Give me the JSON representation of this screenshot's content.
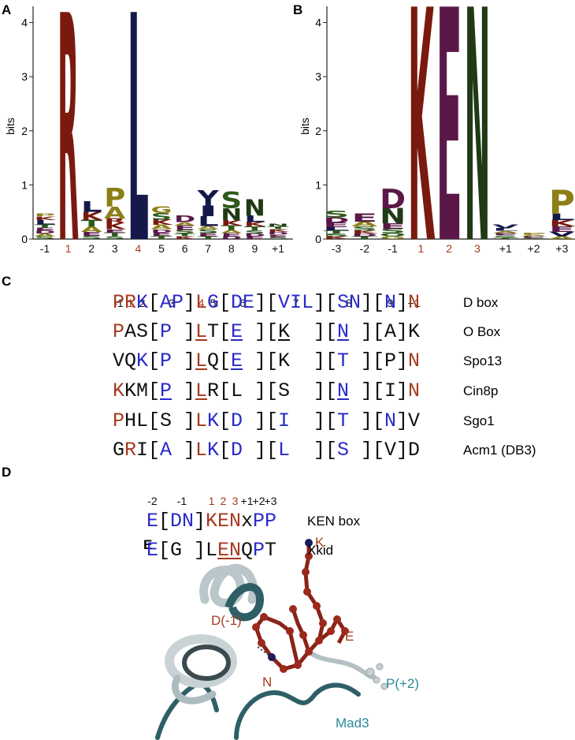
{
  "chart_data": [
    {
      "type": "logo",
      "panel": "A",
      "ylabel": "bits",
      "ylim": [
        0,
        4.3
      ],
      "yticks": [
        0,
        1,
        2,
        3,
        4
      ],
      "categories": [
        "-1",
        "1",
        "2",
        "3",
        "4",
        "5",
        "6",
        "7",
        "8",
        "9",
        "+1"
      ],
      "category_colors": [
        "#111111",
        "#a63a1f",
        "#111111",
        "#111111",
        "#a63a1f",
        "#111111",
        "#111111",
        "#111111",
        "#111111",
        "#111111",
        "#111111"
      ],
      "stacks": [
        [
          {
            "letter": "S",
            "bits": 0.05
          },
          {
            "letter": "A",
            "bits": 0.05
          },
          {
            "letter": "D",
            "bits": 0.06
          },
          {
            "letter": "E",
            "bits": 0.05
          },
          {
            "letter": "T",
            "bits": 0.06
          },
          {
            "letter": "L",
            "bits": 0.08
          },
          {
            "letter": "K",
            "bits": 0.07
          },
          {
            "letter": "P",
            "bits": 0.05
          }
        ],
        [
          {
            "letter": "R",
            "bits": 4.2
          }
        ],
        [
          {
            "letter": "S",
            "bits": 0.06
          },
          {
            "letter": "E",
            "bits": 0.07
          },
          {
            "letter": "A",
            "bits": 0.1
          },
          {
            "letter": "T",
            "bits": 0.12
          },
          {
            "letter": "K",
            "bits": 0.15
          },
          {
            "letter": "L",
            "bits": 0.2
          }
        ],
        [
          {
            "letter": "S",
            "bits": 0.05
          },
          {
            "letter": "T",
            "bits": 0.07
          },
          {
            "letter": "E",
            "bits": 0.06
          },
          {
            "letter": "K",
            "bits": 0.12
          },
          {
            "letter": "R",
            "bits": 0.08
          },
          {
            "letter": "A",
            "bits": 0.22
          },
          {
            "letter": "P",
            "bits": 0.35
          }
        ],
        [
          {
            "letter": "L",
            "bits": 4.2
          }
        ],
        [
          {
            "letter": "T",
            "bits": 0.06
          },
          {
            "letter": "E",
            "bits": 0.06
          },
          {
            "letter": "D",
            "bits": 0.06
          },
          {
            "letter": "A",
            "bits": 0.08
          },
          {
            "letter": "K",
            "bits": 0.1
          },
          {
            "letter": "S",
            "bits": 0.12
          },
          {
            "letter": "G",
            "bits": 0.12
          }
        ],
        [
          {
            "letter": "K",
            "bits": 0.05
          },
          {
            "letter": "T",
            "bits": 0.05
          },
          {
            "letter": "S",
            "bits": 0.07
          },
          {
            "letter": "E",
            "bits": 0.08
          },
          {
            "letter": "A",
            "bits": 0.06
          },
          {
            "letter": "D",
            "bits": 0.12
          }
        ],
        [
          {
            "letter": "T",
            "bits": 0.05
          },
          {
            "letter": "E",
            "bits": 0.06
          },
          {
            "letter": "S",
            "bits": 0.07
          },
          {
            "letter": "A",
            "bits": 0.06
          },
          {
            "letter": "L",
            "bits": 0.18
          },
          {
            "letter": "I",
            "bits": 0.2
          },
          {
            "letter": "Y",
            "bits": 0.28
          }
        ],
        [
          {
            "letter": "D",
            "bits": 0.05
          },
          {
            "letter": "E",
            "bits": 0.06
          },
          {
            "letter": "A",
            "bits": 0.06
          },
          {
            "letter": "T",
            "bits": 0.08
          },
          {
            "letter": "K",
            "bits": 0.1
          },
          {
            "letter": "N",
            "bits": 0.22
          },
          {
            "letter": "S",
            "bits": 0.3
          }
        ],
        [
          {
            "letter": "E",
            "bits": 0.05
          },
          {
            "letter": "D",
            "bits": 0.05
          },
          {
            "letter": "S",
            "bits": 0.06
          },
          {
            "letter": "T",
            "bits": 0.07
          },
          {
            "letter": "K",
            "bits": 0.08
          },
          {
            "letter": "L",
            "bits": 0.12
          },
          {
            "letter": "N",
            "bits": 0.3
          }
        ],
        [
          {
            "letter": "S",
            "bits": 0.04
          },
          {
            "letter": "E",
            "bits": 0.04
          },
          {
            "letter": "D",
            "bits": 0.05
          },
          {
            "letter": "K",
            "bits": 0.05
          },
          {
            "letter": "T",
            "bits": 0.05
          },
          {
            "letter": "N",
            "bits": 0.05
          }
        ]
      ]
    },
    {
      "type": "logo",
      "panel": "B",
      "ylabel": "bits",
      "ylim": [
        0,
        4.3
      ],
      "yticks": [
        0,
        1,
        2,
        3,
        4
      ],
      "categories": [
        "-3",
        "-2",
        "-1",
        "1",
        "2",
        "3",
        "+1",
        "+2",
        "+3"
      ],
      "category_colors": [
        "#111111",
        "#111111",
        "#111111",
        "#a63a1f",
        "#a63a1f",
        "#a63a1f",
        "#111111",
        "#111111",
        "#111111"
      ],
      "stacks": [
        [
          {
            "letter": "K",
            "bits": 0.05
          },
          {
            "letter": "S",
            "bits": 0.05
          },
          {
            "letter": "T",
            "bits": 0.06
          },
          {
            "letter": "L",
            "bits": 0.06
          },
          {
            "letter": "E",
            "bits": 0.08
          },
          {
            "letter": "D",
            "bits": 0.1
          },
          {
            "letter": "S",
            "bits": 0.12
          }
        ],
        [
          {
            "letter": "T",
            "bits": 0.05
          },
          {
            "letter": "D",
            "bits": 0.05
          },
          {
            "letter": "K",
            "bits": 0.06
          },
          {
            "letter": "S",
            "bits": 0.07
          },
          {
            "letter": "A",
            "bits": 0.09
          },
          {
            "letter": "E",
            "bits": 0.15
          }
        ],
        [
          {
            "letter": "G",
            "bits": 0.05
          },
          {
            "letter": "Q",
            "bits": 0.06
          },
          {
            "letter": "S",
            "bits": 0.08
          },
          {
            "letter": "E",
            "bits": 0.1
          },
          {
            "letter": "N",
            "bits": 0.28
          },
          {
            "letter": "D",
            "bits": 0.36
          }
        ],
        [
          {
            "letter": "K",
            "bits": 4.3
          }
        ],
        [
          {
            "letter": "E",
            "bits": 4.3
          }
        ],
        [
          {
            "letter": "N",
            "bits": 4.3
          }
        ],
        [
          {
            "letter": "T",
            "bits": 0.03
          },
          {
            "letter": "S",
            "bits": 0.04
          },
          {
            "letter": "E",
            "bits": 0.04
          },
          {
            "letter": "A",
            "bits": 0.04
          },
          {
            "letter": "L",
            "bits": 0.05
          },
          {
            "letter": "V",
            "bits": 0.07
          }
        ],
        [
          {
            "letter": "S",
            "bits": 0.02
          },
          {
            "letter": "E",
            "bits": 0.03
          },
          {
            "letter": "A",
            "bits": 0.03
          },
          {
            "letter": "P",
            "bits": 0.04
          }
        ],
        [
          {
            "letter": "A",
            "bits": 0.05
          },
          {
            "letter": "V",
            "bits": 0.08
          },
          {
            "letter": "E",
            "bits": 0.1
          },
          {
            "letter": "K",
            "bits": 0.12
          },
          {
            "letter": "L",
            "bits": 0.12
          },
          {
            "letter": "P",
            "bits": 0.45
          }
        ]
      ]
    }
  ],
  "letter_colors": {
    "R": "#7a1a0f",
    "K": "#7a1a0f",
    "L": "#14194a",
    "I": "#14194a",
    "V": "#14194a",
    "Y": "#14194a",
    "P": "#8c7f16",
    "A": "#8c7f16",
    "G": "#8c7f16",
    "N": "#1f3a14",
    "S": "#2e5a1e",
    "T": "#2e5a1e",
    "Q": "#2e5a1e",
    "D": "#5a1848",
    "E": "#5a1848"
  },
  "alignment_c": {
    "panel": "C",
    "header": [
      "-1",
      "1",
      "2",
      "3",
      "4",
      "5",
      "6",
      "7",
      "8",
      "9",
      "+1"
    ],
    "header_colors": [
      "#111111",
      "#a63a1f",
      "#111111",
      "#111111",
      "#a63a1f",
      "#111111",
      "#111111",
      "#111111",
      "#111111",
      "#111111",
      "#111111"
    ],
    "rows": [
      {
        "name": "D box",
        "segments": [
          {
            "text": "PR",
            "color": "#a63a1f"
          },
          {
            "text": "K",
            "color": "#2a2ac8"
          },
          {
            "text": "[",
            "color": "#111111"
          },
          {
            "text": "AP",
            "color": "#2a2ac8"
          },
          {
            "text": "]",
            "color": "#111111"
          },
          {
            "text": "L",
            "color": "#a63a1f"
          },
          {
            "text": "G",
            "color": "#2a2ac8"
          },
          {
            "text": "[",
            "color": "#111111"
          },
          {
            "text": "DE",
            "color": "#2a2ac8"
          },
          {
            "text": "][",
            "color": "#111111"
          },
          {
            "text": "VIL",
            "color": "#2a2ac8"
          },
          {
            "text": "][",
            "color": "#111111"
          },
          {
            "text": "SN",
            "color": "#2a2ac8"
          },
          {
            "text": "][",
            "color": "#111111"
          },
          {
            "text": "N",
            "color": "#2a2ac8"
          },
          {
            "text": "]",
            "color": "#111111"
          },
          {
            "text": "N",
            "color": "#a63a1f"
          }
        ]
      },
      {
        "name": "O Box",
        "segments": [
          {
            "text": "P",
            "color": "#a63a1f"
          },
          {
            "text": "AS[",
            "color": "#111111"
          },
          {
            "text": "P",
            "color": "#2a2ac8"
          },
          {
            "text": " ]",
            "color": "#111111"
          },
          {
            "text": "L",
            "color": "#a63a1f",
            "underline": true
          },
          {
            "text": "T[",
            "color": "#111111"
          },
          {
            "text": "E",
            "color": "#2a2ac8",
            "underline": true
          },
          {
            "text": " ][",
            "color": "#111111"
          },
          {
            "text": "K",
            "color": "#111111",
            "underline": true
          },
          {
            "text": "  ][",
            "color": "#111111"
          },
          {
            "text": "N",
            "color": "#2a2ac8",
            "underline": true
          },
          {
            "text": " ][A]K",
            "color": "#111111"
          }
        ]
      },
      {
        "name": "Spo13",
        "segments": [
          {
            "text": "VQ",
            "color": "#111111"
          },
          {
            "text": "K",
            "color": "#2a2ac8"
          },
          {
            "text": "[",
            "color": "#111111"
          },
          {
            "text": "P",
            "color": "#2a2ac8"
          },
          {
            "text": " ]",
            "color": "#111111"
          },
          {
            "text": "L",
            "color": "#a63a1f",
            "underline": true
          },
          {
            "text": "Q[",
            "color": "#111111"
          },
          {
            "text": "E",
            "color": "#2a2ac8",
            "underline": true
          },
          {
            "text": " ][K  ][",
            "color": "#111111"
          },
          {
            "text": "T",
            "color": "#2a2ac8"
          },
          {
            "text": " ][P]",
            "color": "#111111"
          },
          {
            "text": "N",
            "color": "#a63a1f"
          }
        ]
      },
      {
        "name": "Cin8p",
        "segments": [
          {
            "text": "K",
            "color": "#a63a1f"
          },
          {
            "text": "KM[",
            "color": "#111111"
          },
          {
            "text": "P",
            "color": "#2a2ac8",
            "underline": true
          },
          {
            "text": " ]",
            "color": "#111111"
          },
          {
            "text": "L",
            "color": "#a63a1f",
            "underline": true
          },
          {
            "text": "R[L ][S  ][",
            "color": "#111111"
          },
          {
            "text": "N",
            "color": "#2a2ac8",
            "underline": true
          },
          {
            "text": " ][I]",
            "color": "#111111"
          },
          {
            "text": "N",
            "color": "#a63a1f"
          }
        ]
      },
      {
        "name": "Sgo1",
        "segments": [
          {
            "text": "P",
            "color": "#a63a1f"
          },
          {
            "text": "HL[S ]",
            "color": "#111111"
          },
          {
            "text": "L",
            "color": "#a63a1f"
          },
          {
            "text": "K",
            "color": "#2a2ac8"
          },
          {
            "text": "[",
            "color": "#111111"
          },
          {
            "text": "D",
            "color": "#2a2ac8"
          },
          {
            "text": " ][",
            "color": "#111111"
          },
          {
            "text": "I",
            "color": "#2a2ac8"
          },
          {
            "text": "  ][",
            "color": "#111111"
          },
          {
            "text": "T",
            "color": "#2a2ac8"
          },
          {
            "text": " ][",
            "color": "#111111"
          },
          {
            "text": "N",
            "color": "#2a2ac8"
          },
          {
            "text": "]V",
            "color": "#111111"
          }
        ]
      },
      {
        "name": "Acm1 (DB3)",
        "segments": [
          {
            "text": "G",
            "color": "#111111"
          },
          {
            "text": "R",
            "color": "#a63a1f"
          },
          {
            "text": "I[",
            "color": "#111111"
          },
          {
            "text": "A",
            "color": "#2a2ac8"
          },
          {
            "text": " ]",
            "color": "#111111"
          },
          {
            "text": "L",
            "color": "#a63a1f"
          },
          {
            "text": "K",
            "color": "#2a2ac8"
          },
          {
            "text": "[",
            "color": "#111111"
          },
          {
            "text": "D",
            "color": "#2a2ac8"
          },
          {
            "text": " ][",
            "color": "#111111"
          },
          {
            "text": "L",
            "color": "#2a2ac8"
          },
          {
            "text": "  ][",
            "color": "#111111"
          },
          {
            "text": "S",
            "color": "#2a2ac8"
          },
          {
            "text": " ][V]D",
            "color": "#111111"
          }
        ]
      }
    ]
  },
  "alignment_d": {
    "panel": "D",
    "header": [
      "-2",
      "-1",
      "1",
      "2",
      "3",
      "+1",
      "+2",
      "+3"
    ],
    "header_colors": [
      "#111111",
      "#111111",
      "#a63a1f",
      "#a63a1f",
      "#a63a1f",
      "#111111",
      "#111111",
      "#111111"
    ],
    "rows": [
      {
        "name": "KEN box",
        "segments": [
          {
            "text": "E",
            "color": "#2a2ac8"
          },
          {
            "text": "[",
            "color": "#111111"
          },
          {
            "text": "DN",
            "color": "#2a2ac8"
          },
          {
            "text": "]",
            "color": "#111111"
          },
          {
            "text": "KEN",
            "color": "#a63a1f"
          },
          {
            "text": "x",
            "color": "#111111"
          },
          {
            "text": "PP",
            "color": "#2a2ac8"
          }
        ]
      },
      {
        "name": "Xkid",
        "segments": [
          {
            "text": "E",
            "color": "#2a2ac8"
          },
          {
            "text": "[G ]L",
            "color": "#111111"
          },
          {
            "text": "EN",
            "color": "#a63a1f",
            "underline": true
          },
          {
            "text": "Q",
            "color": "#111111"
          },
          {
            "text": "P",
            "color": "#2a2ac8"
          },
          {
            "text": "T",
            "color": "#111111"
          }
        ]
      }
    ]
  },
  "structure": {
    "panel": "E",
    "labels": {
      "k": "K",
      "e": "E",
      "d": "D(-1)",
      "n": "N",
      "p": "P(+2)",
      "mad3": "Mad3"
    }
  }
}
